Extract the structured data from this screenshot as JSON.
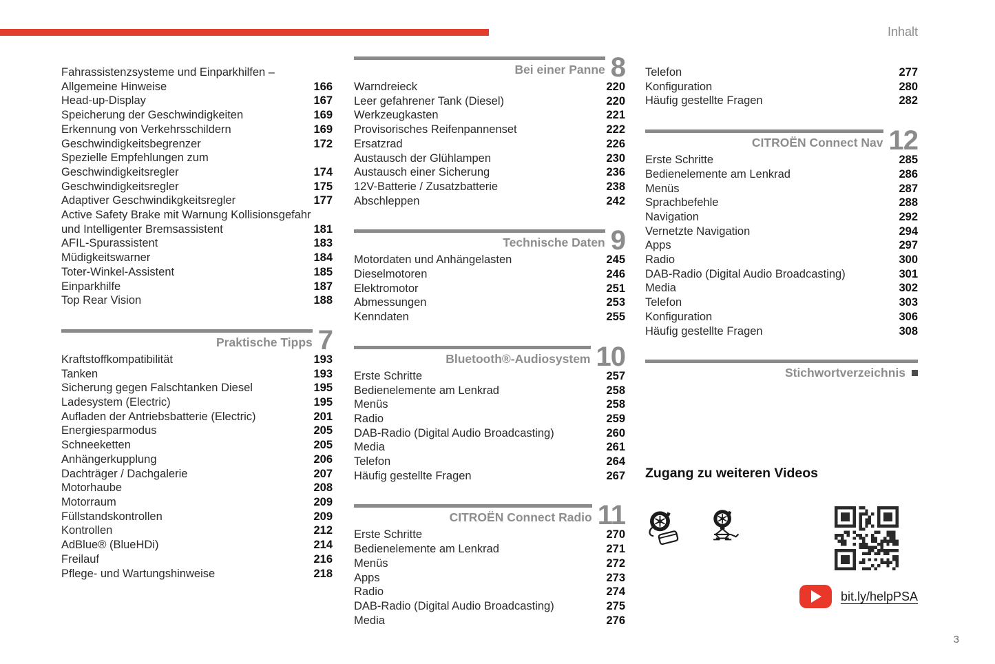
{
  "page": {
    "header_label": "Inhalt",
    "page_number": "3"
  },
  "colors": {
    "accent_red": "#e23e2d",
    "section_gray": "#8a8a8a",
    "youtube_red": "#e9372a"
  },
  "columns": [
    {
      "sections": [
        {
          "type": "plain",
          "items": [
            {
              "label": "Fahrassistenzsysteme und Einparkhilfen –\nAllgemeine Hinweise",
              "page": "166"
            },
            {
              "label": "Head-up-Display",
              "page": "167"
            },
            {
              "label": "Speicherung der Geschwindigkeiten",
              "page": "169"
            },
            {
              "label": "Erkennung von Verkehrsschildern",
              "page": "169"
            },
            {
              "label": "Geschwindigkeitsbegrenzer",
              "page": "172"
            },
            {
              "label": "Spezielle Empfehlungen zum\nGeschwindigkeitsregler",
              "page": "174"
            },
            {
              "label": "Geschwindigkeitsregler",
              "page": "175"
            },
            {
              "label": "Adaptiver Geschwindikgkeitsregler",
              "page": "177"
            },
            {
              "label": "Active Safety Brake mit Warnung Kollisionsgefahr\nund Intelligenter Bremsassistent",
              "page": "181"
            },
            {
              "label": "AFIL-Spurassistent",
              "page": "183"
            },
            {
              "label": "Müdigkeitswarner",
              "page": "184"
            },
            {
              "label": "Toter-Winkel-Assistent",
              "page": "185"
            },
            {
              "label": "Einparkhilfe",
              "page": "187"
            },
            {
              "label": "Top Rear Vision",
              "page": "188"
            }
          ]
        },
        {
          "type": "chapter",
          "title": "Praktische Tipps",
          "number": "7",
          "items": [
            {
              "label": "Kraftstoffkompatibilität",
              "page": "193"
            },
            {
              "label": "Tanken",
              "page": "193"
            },
            {
              "label": "Sicherung gegen Falschtanken Diesel",
              "page": "195"
            },
            {
              "label": "Ladesystem (Electric)",
              "page": "195"
            },
            {
              "label": "Aufladen der Antriebsbatterie (Electric)",
              "page": "201"
            },
            {
              "label": "Energiesparmodus",
              "page": "205"
            },
            {
              "label": "Schneeketten",
              "page": "205"
            },
            {
              "label": "Anhängerkupplung",
              "page": "206"
            },
            {
              "label": "Dachträger / Dachgalerie",
              "page": "207"
            },
            {
              "label": "Motorhaube",
              "page": "208"
            },
            {
              "label": "Motorraum",
              "page": "209"
            },
            {
              "label": "Füllstandskontrollen",
              "page": "209"
            },
            {
              "label": "Kontrollen",
              "page": "212"
            },
            {
              "label": "AdBlue® (BlueHDi)",
              "page": "214"
            },
            {
              "label": "Freilauf",
              "page": "216"
            },
            {
              "label": "Pflege- und Wartungshinweise",
              "page": "218"
            }
          ]
        }
      ]
    },
    {
      "sections": [
        {
          "type": "chapter",
          "title": "Bei einer Panne",
          "number": "8",
          "items": [
            {
              "label": "Warndreieck",
              "page": "220"
            },
            {
              "label": "Leer gefahrener Tank (Diesel)",
              "page": "220"
            },
            {
              "label": "Werkzeugkasten",
              "page": "221"
            },
            {
              "label": "Provisorisches Reifenpannenset",
              "page": "222"
            },
            {
              "label": "Ersatzrad",
              "page": "226"
            },
            {
              "label": "Austausch der Glühlampen",
              "page": "230"
            },
            {
              "label": "Austausch einer Sicherung",
              "page": "236"
            },
            {
              "label": "12V-Batterie / Zusatzbatterie",
              "page": "238"
            },
            {
              "label": "Abschleppen",
              "page": "242"
            }
          ]
        },
        {
          "type": "chapter",
          "title": "Technische Daten",
          "number": "9",
          "items": [
            {
              "label": "Motordaten und Anhängelasten",
              "page": "245"
            },
            {
              "label": "Dieselmotoren",
              "page": "246"
            },
            {
              "label": "Elektromotor",
              "page": "251"
            },
            {
              "label": "Abmessungen",
              "page": "253"
            },
            {
              "label": "Kenndaten",
              "page": "255"
            }
          ]
        },
        {
          "type": "chapter",
          "title": "Bluetooth®-Audiosystem",
          "number": "10",
          "items": [
            {
              "label": "Erste Schritte",
              "page": "257"
            },
            {
              "label": "Bedienelemente am Lenkrad",
              "page": "258"
            },
            {
              "label": "Menüs",
              "page": "258"
            },
            {
              "label": "Radio",
              "page": "259"
            },
            {
              "label": "DAB-Radio (Digital Audio Broadcasting)",
              "page": "260"
            },
            {
              "label": "Media",
              "page": "261"
            },
            {
              "label": "Telefon",
              "page": "264"
            },
            {
              "label": "Häufig gestellte Fragen",
              "page": "267"
            }
          ]
        },
        {
          "type": "chapter",
          "title": "CITROËN Connect Radio",
          "number": "11",
          "items": [
            {
              "label": "Erste Schritte",
              "page": "270"
            },
            {
              "label": "Bedienelemente am Lenkrad",
              "page": "271"
            },
            {
              "label": "Menüs",
              "page": "272"
            },
            {
              "label": "Apps",
              "page": "273"
            },
            {
              "label": "Radio",
              "page": "274"
            },
            {
              "label": "DAB-Radio (Digital Audio Broadcasting)",
              "page": "275"
            },
            {
              "label": "Media",
              "page": "276"
            }
          ]
        }
      ]
    },
    {
      "sections": [
        {
          "type": "plain",
          "items": [
            {
              "label": "Telefon",
              "page": "277"
            },
            {
              "label": "Konfiguration",
              "page": "280"
            },
            {
              "label": "Häufig gestellte Fragen",
              "page": "282"
            }
          ]
        },
        {
          "type": "chapter",
          "title": "CITROËN Connect Nav",
          "number": "12",
          "items": [
            {
              "label": "Erste Schritte",
              "page": "285"
            },
            {
              "label": "Bedienelemente am Lenkrad",
              "page": "286"
            },
            {
              "label": "Menüs",
              "page": "287"
            },
            {
              "label": "Sprachbefehle",
              "page": "288"
            },
            {
              "label": "Navigation",
              "page": "292"
            },
            {
              "label": "Vernetzte Navigation",
              "page": "294"
            },
            {
              "label": "Apps",
              "page": "297"
            },
            {
              "label": "Radio",
              "page": "300"
            },
            {
              "label": "DAB-Radio (Digital Audio Broadcasting)",
              "page": "301"
            },
            {
              "label": "Media",
              "page": "302"
            },
            {
              "label": "Telefon",
              "page": "303"
            },
            {
              "label": "Konfiguration",
              "page": "306"
            },
            {
              "label": "Häufig gestellte Fragen",
              "page": "308"
            }
          ]
        },
        {
          "type": "index",
          "title": "Stichwortverzeichnis"
        }
      ]
    }
  ],
  "videos": {
    "title": "Zugang zu weiteren Videos",
    "link_label": "bit.ly/helpPSA",
    "icons": [
      "tire-repair-kit-icon",
      "scissor-jack-icon",
      "qr-code",
      "youtube-icon"
    ]
  }
}
